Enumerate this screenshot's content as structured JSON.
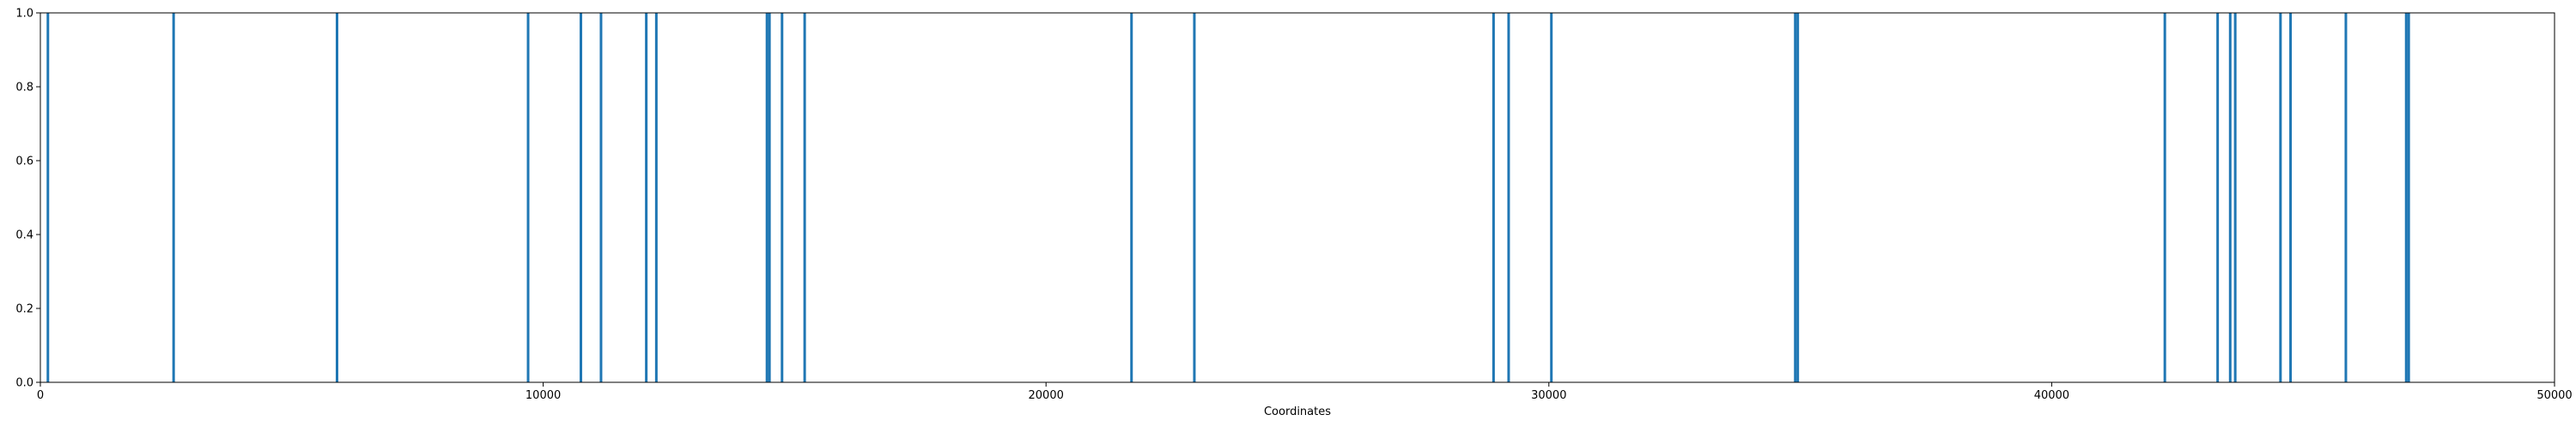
{
  "chart_data": {
    "type": "bar",
    "title": "",
    "xlabel": "Coordinates",
    "ylabel": "",
    "xlim": [
      0,
      50000
    ],
    "ylim": [
      0,
      1.0
    ],
    "x_ticks": [
      0,
      10000,
      20000,
      30000,
      40000,
      50000
    ],
    "x_tick_labels": [
      "0",
      "10000",
      "20000",
      "30000",
      "40000",
      "50000"
    ],
    "y_ticks": [
      0.0,
      0.2,
      0.4,
      0.6,
      0.8,
      1.0
    ],
    "y_tick_labels": [
      "0.0",
      "0.2",
      "0.4",
      "0.6",
      "0.8",
      "1.0"
    ],
    "grid": false,
    "legend": "none",
    "series": [
      {
        "color": "#1f77b4",
        "x": [
          150,
          2650,
          5900,
          9700,
          10750,
          11150,
          12050,
          12250,
          14450,
          14500,
          14750,
          15200,
          21700,
          22950,
          28900,
          29200,
          30050,
          34900,
          34950,
          42250,
          43300,
          43550,
          43650,
          44550,
          44750,
          45850,
          47050,
          47100
        ],
        "values": [
          1,
          1,
          1,
          1,
          1,
          1,
          1,
          1,
          1,
          1,
          1,
          1,
          1,
          1,
          1,
          1,
          1,
          1,
          1,
          1,
          1,
          1,
          1,
          1,
          1,
          1,
          1,
          1
        ]
      }
    ]
  }
}
